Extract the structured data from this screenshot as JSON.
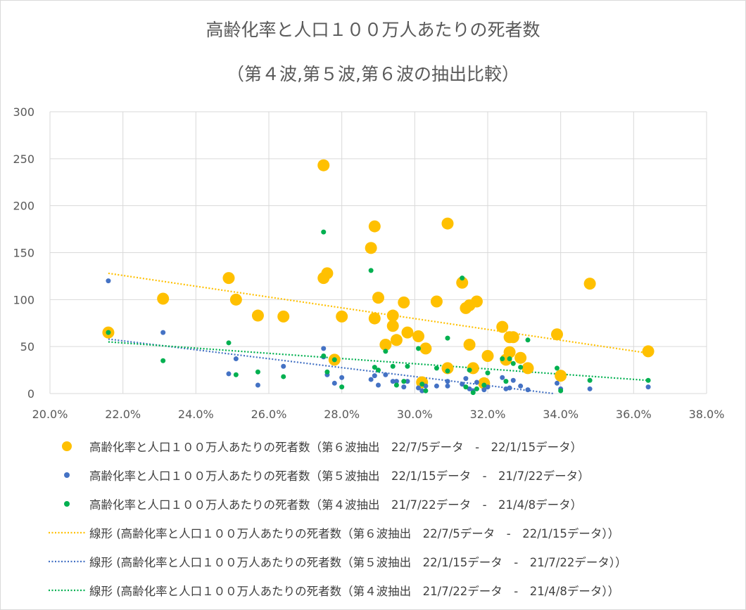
{
  "chart_data": {
    "type": "scatter",
    "title": "高齢化率と人口１００万人あたりの死者数",
    "subtitle": "（第４波,第５波,第６波の抽出比較）",
    "xlim": [
      0.2,
      0.38
    ],
    "ylim": [
      0,
      300
    ],
    "x_ticks": [
      "20.0%",
      "22.0%",
      "24.0%",
      "26.0%",
      "28.0%",
      "30.0%",
      "32.0%",
      "34.0%",
      "36.0%",
      "38.0%"
    ],
    "y_ticks": [
      "0",
      "50",
      "100",
      "150",
      "200",
      "250",
      "300"
    ],
    "grid": true,
    "legend_position": "bottom",
    "series": [
      {
        "name": "高齢化率と人口１００万人あたりの死者数（第６波抽出　22/7/5データ　-　22/1/15データ）",
        "color": "#FFC000",
        "marker_size": "large",
        "points": [
          [
            0.216,
            65
          ],
          [
            0.231,
            101
          ],
          [
            0.249,
            123
          ],
          [
            0.251,
            100
          ],
          [
            0.257,
            83
          ],
          [
            0.264,
            82
          ],
          [
            0.275,
            243
          ],
          [
            0.275,
            123
          ],
          [
            0.276,
            128
          ],
          [
            0.278,
            36
          ],
          [
            0.28,
            82
          ],
          [
            0.288,
            155
          ],
          [
            0.289,
            178
          ],
          [
            0.289,
            80
          ],
          [
            0.29,
            102
          ],
          [
            0.292,
            52
          ],
          [
            0.294,
            83
          ],
          [
            0.294,
            72
          ],
          [
            0.295,
            57
          ],
          [
            0.297,
            97
          ],
          [
            0.298,
            65
          ],
          [
            0.301,
            61
          ],
          [
            0.302,
            12
          ],
          [
            0.303,
            48
          ],
          [
            0.306,
            98
          ],
          [
            0.309,
            181
          ],
          [
            0.309,
            27
          ],
          [
            0.313,
            118
          ],
          [
            0.314,
            91
          ],
          [
            0.315,
            94
          ],
          [
            0.315,
            52
          ],
          [
            0.316,
            27
          ],
          [
            0.317,
            98
          ],
          [
            0.319,
            11
          ],
          [
            0.32,
            40
          ],
          [
            0.324,
            71
          ],
          [
            0.325,
            36
          ],
          [
            0.326,
            44
          ],
          [
            0.326,
            60
          ],
          [
            0.327,
            60
          ],
          [
            0.329,
            38
          ],
          [
            0.331,
            27
          ],
          [
            0.339,
            63
          ],
          [
            0.34,
            19
          ],
          [
            0.348,
            117
          ],
          [
            0.364,
            45
          ]
        ],
        "trendline": {
          "label": "線形 (高齢化率と人口１００万人あたりの死者数（第６波抽出　22/7/5データ　-　22/1/15データ））",
          "x": [
            0.216,
            0.364
          ],
          "y": [
            128,
            43
          ]
        }
      },
      {
        "name": "高齢化率と人口１００万人あたりの死者数（第５波抽出　22/1/15データ　-　21/7/22データ）",
        "color": "#4472C4",
        "marker_size": "small",
        "points": [
          [
            0.216,
            120
          ],
          [
            0.231,
            65
          ],
          [
            0.249,
            21
          ],
          [
            0.251,
            37
          ],
          [
            0.257,
            9
          ],
          [
            0.264,
            29
          ],
          [
            0.275,
            48
          ],
          [
            0.275,
            39
          ],
          [
            0.276,
            20
          ],
          [
            0.278,
            11
          ],
          [
            0.28,
            17
          ],
          [
            0.288,
            15
          ],
          [
            0.289,
            19
          ],
          [
            0.29,
            9
          ],
          [
            0.292,
            20
          ],
          [
            0.294,
            13
          ],
          [
            0.295,
            13
          ],
          [
            0.297,
            7
          ],
          [
            0.298,
            13
          ],
          [
            0.301,
            6
          ],
          [
            0.302,
            3
          ],
          [
            0.303,
            8
          ],
          [
            0.306,
            8
          ],
          [
            0.309,
            13
          ],
          [
            0.309,
            8
          ],
          [
            0.313,
            10
          ],
          [
            0.314,
            16
          ],
          [
            0.315,
            5
          ],
          [
            0.316,
            3
          ],
          [
            0.317,
            12
          ],
          [
            0.319,
            4
          ],
          [
            0.32,
            7
          ],
          [
            0.324,
            17
          ],
          [
            0.325,
            5
          ],
          [
            0.326,
            6
          ],
          [
            0.327,
            14
          ],
          [
            0.329,
            8
          ],
          [
            0.331,
            4
          ],
          [
            0.339,
            11
          ],
          [
            0.34,
            5
          ],
          [
            0.348,
            5
          ],
          [
            0.364,
            7
          ]
        ],
        "trendline": {
          "label": "線形 (高齢化率と人口１００万人あたりの死者数（第５波抽出　22/1/15データ　-　21/7/22データ））",
          "x": [
            0.216,
            0.338
          ],
          "y": [
            58,
            0
          ]
        }
      },
      {
        "name": "高齢化率と人口１００万人あたりの死者数（第４波抽出　21/7/22データ　-　21/4/8データ）",
        "color": "#00B050",
        "marker_size": "small",
        "points": [
          [
            0.216,
            65
          ],
          [
            0.231,
            35
          ],
          [
            0.249,
            54
          ],
          [
            0.251,
            20
          ],
          [
            0.257,
            23
          ],
          [
            0.264,
            18
          ],
          [
            0.275,
            172
          ],
          [
            0.275,
            40
          ],
          [
            0.276,
            23
          ],
          [
            0.278,
            36
          ],
          [
            0.28,
            7
          ],
          [
            0.288,
            131
          ],
          [
            0.289,
            28
          ],
          [
            0.29,
            25
          ],
          [
            0.292,
            45
          ],
          [
            0.294,
            29
          ],
          [
            0.295,
            9
          ],
          [
            0.297,
            13
          ],
          [
            0.298,
            29
          ],
          [
            0.301,
            48
          ],
          [
            0.302,
            10
          ],
          [
            0.303,
            3
          ],
          [
            0.306,
            27
          ],
          [
            0.309,
            59
          ],
          [
            0.309,
            24
          ],
          [
            0.313,
            123
          ],
          [
            0.314,
            7
          ],
          [
            0.315,
            25
          ],
          [
            0.316,
            1
          ],
          [
            0.317,
            5
          ],
          [
            0.319,
            9
          ],
          [
            0.32,
            22
          ],
          [
            0.324,
            37
          ],
          [
            0.325,
            13
          ],
          [
            0.326,
            37
          ],
          [
            0.327,
            32
          ],
          [
            0.329,
            28
          ],
          [
            0.331,
            57
          ],
          [
            0.339,
            27
          ],
          [
            0.34,
            3
          ],
          [
            0.348,
            14
          ],
          [
            0.364,
            14
          ]
        ],
        "trendline": {
          "label": "線形 (高齢化率と人口１００万人あたりの死者数（第４波抽出　21/7/22データ　-　21/4/8データ））",
          "x": [
            0.216,
            0.364
          ],
          "y": [
            55,
            14
          ]
        }
      }
    ]
  }
}
